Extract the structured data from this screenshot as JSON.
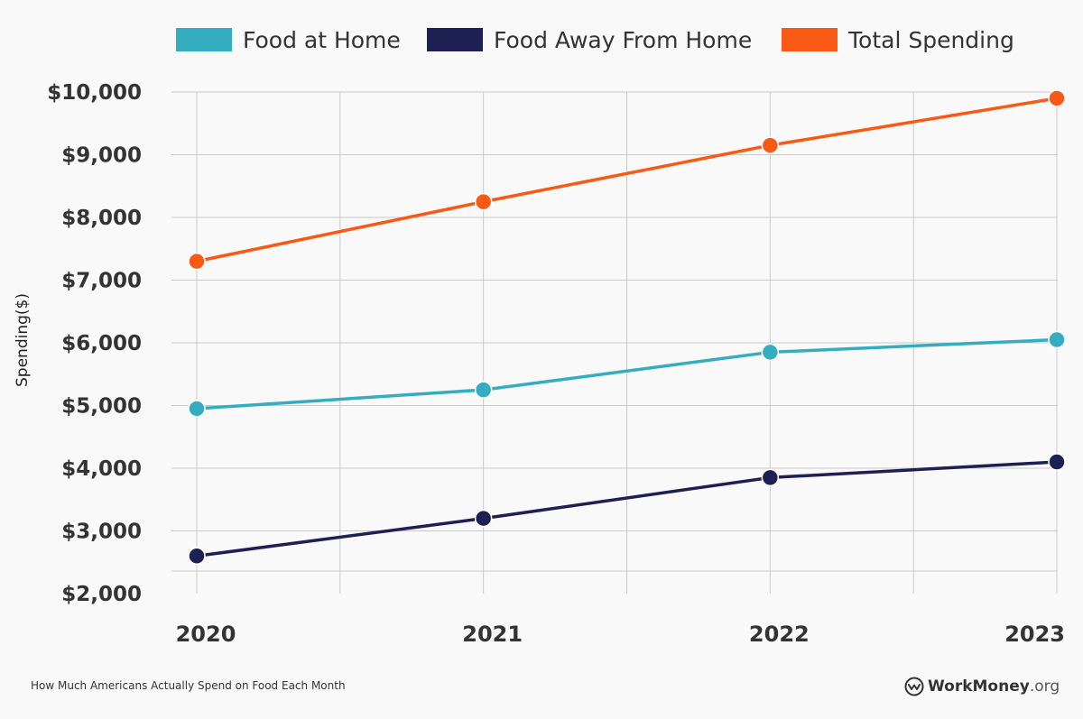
{
  "chart_data": {
    "type": "line",
    "title": "",
    "xlabel": "",
    "ylabel": "Spending($)",
    "x": [
      "2020",
      "2021",
      "2022",
      "2023"
    ],
    "ylim": [
      2000,
      10000
    ],
    "yticks": [
      "$2,000",
      "$3,000",
      "$4,000",
      "$5,000",
      "$6,000",
      "$7,000",
      "$8,000",
      "$9,000",
      "$10,000"
    ],
    "ytick_values": [
      2000,
      3000,
      4000,
      5000,
      6000,
      7000,
      8000,
      9000,
      10000
    ],
    "grid": true,
    "legend_placement": "top",
    "series": [
      {
        "name": "Food at Home",
        "color": "#35adc0",
        "values": [
          4950,
          5250,
          5850,
          6050
        ]
      },
      {
        "name": "Food Away From Home",
        "color": "#1e1f52",
        "values": [
          2600,
          3200,
          3850,
          4100
        ]
      },
      {
        "name": "Total Spending",
        "color": "#f85a16",
        "values": [
          7300,
          8250,
          9150,
          9900
        ]
      }
    ]
  },
  "footer": {
    "caption": "How Much Americans Actually Spend on Food Each Month",
    "brand_name": "WorkMoney",
    "brand_tld": ".org",
    "brand_icon": "workmoney-logo-icon"
  }
}
